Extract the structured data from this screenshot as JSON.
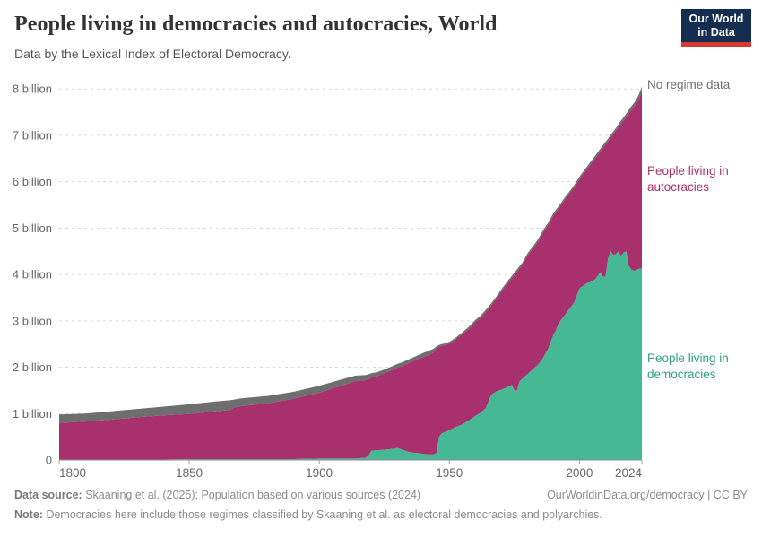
{
  "header": {
    "title": "People living in democracies and autocracies, World",
    "subtitle": "Data by the Lexical Index of Electoral Democracy."
  },
  "logo": {
    "line1": "Our World",
    "line2": "in Data",
    "bg_color": "#152d4f",
    "accent_color": "#d73a33"
  },
  "annotations": {
    "no_regime_data": "No regime data",
    "autocracies": "People living in autocracies",
    "democracies": "People living in democracies"
  },
  "footer": {
    "data_source_label": "Data source:",
    "data_source": "Skaaning et al. (2025); Population based on various sources (2024)",
    "url": "OurWorldinData.org/democracy",
    "separator": " | ",
    "license": "CC BY",
    "note_label": "Note:",
    "note": "Democracies here include those regimes classified by Skaaning et al. as electoral democracies and polyarchies."
  },
  "chart_data": {
    "type": "area",
    "stacked": true,
    "title": "People living in democracies and autocracies, World",
    "xlabel": "",
    "ylabel": "",
    "unit": "billion people",
    "xlim": [
      1800,
      2024
    ],
    "ylim": [
      0,
      8.12
    ],
    "grid": "horizontal-dashed",
    "legend_position": "right-annotations",
    "colors": {
      "democracies": "#46b894",
      "autocracies": "#a8306c",
      "no_regime_data": "#6e6e6e"
    },
    "yticks": [
      [
        0,
        "0"
      ],
      [
        1,
        "1 billion"
      ],
      [
        2,
        "2 billion"
      ],
      [
        3,
        "3 billion"
      ],
      [
        4,
        "4 billion"
      ],
      [
        5,
        "5 billion"
      ],
      [
        6,
        "6 billion"
      ],
      [
        7,
        "7 billion"
      ],
      [
        8,
        "8 billion"
      ]
    ],
    "xticks": [
      [
        1800,
        "1800",
        "start"
      ],
      [
        1850,
        "1850",
        "middle"
      ],
      [
        1900,
        "1900",
        "middle"
      ],
      [
        1950,
        "1950",
        "middle"
      ],
      [
        2000,
        "2000",
        "middle"
      ],
      [
        2024,
        "2024",
        "end"
      ]
    ],
    "x": [
      1800,
      1810,
      1820,
      1830,
      1840,
      1850,
      1860,
      1866,
      1867,
      1870,
      1880,
      1890,
      1900,
      1910,
      1914,
      1918,
      1919,
      1920,
      1922,
      1925,
      1928,
      1930,
      1932,
      1934,
      1936,
      1938,
      1940,
      1942,
      1944,
      1945,
      1946,
      1947,
      1948,
      1950,
      1952,
      1955,
      1958,
      1960,
      1962,
      1964,
      1966,
      1968,
      1970,
      1972,
      1974,
      1975,
      1976,
      1977,
      1978,
      1980,
      1982,
      1984,
      1986,
      1988,
      1990,
      1991,
      1992,
      1994,
      1996,
      1998,
      2000,
      2002,
      2004,
      2006,
      2008,
      2009,
      2010,
      2011,
      2012,
      2013,
      2014,
      2015,
      2016,
      2017,
      2018,
      2019,
      2020,
      2021,
      2022,
      2023,
      2024
    ],
    "series": [
      {
        "name": "People living in democracies",
        "color": "#46b894",
        "values": [
          0,
          0.01,
          0.01,
          0.01,
          0.01,
          0.02,
          0.02,
          0.02,
          0.02,
          0.02,
          0.02,
          0.02,
          0.03,
          0.03,
          0.03,
          0.05,
          0.1,
          0.2,
          0.21,
          0.22,
          0.24,
          0.26,
          0.22,
          0.18,
          0.16,
          0.15,
          0.13,
          0.12,
          0.12,
          0.15,
          0.5,
          0.57,
          0.6,
          0.64,
          0.7,
          0.77,
          0.87,
          0.95,
          1.02,
          1.12,
          1.4,
          1.48,
          1.52,
          1.56,
          1.62,
          1.5,
          1.5,
          1.7,
          1.75,
          1.85,
          1.95,
          2.05,
          2.2,
          2.4,
          2.7,
          2.8,
          2.95,
          3.1,
          3.25,
          3.4,
          3.7,
          3.78,
          3.85,
          3.89,
          4.05,
          3.96,
          3.95,
          4.35,
          4.5,
          4.42,
          4.44,
          4.5,
          4.4,
          4.47,
          4.5,
          4.18,
          4.1,
          4.08,
          4.1,
          4.13,
          4.12
        ]
      },
      {
        "name": "People living in autocracies",
        "color": "#a8306c",
        "values": [
          0.8,
          0.82,
          0.86,
          0.91,
          0.95,
          0.97,
          1.03,
          1.06,
          1.11,
          1.14,
          1.2,
          1.3,
          1.42,
          1.6,
          1.67,
          1.67,
          1.64,
          1.58,
          1.59,
          1.65,
          1.7,
          1.73,
          1.81,
          1.9,
          1.97,
          2.03,
          2.09,
          2.14,
          2.2,
          2.26,
          1.94,
          1.89,
          1.87,
          1.87,
          1.88,
          1.94,
          1.98,
          2.02,
          2.04,
          2.07,
          1.92,
          1.99,
          2.11,
          2.22,
          2.3,
          2.49,
          2.56,
          2.43,
          2.45,
          2.55,
          2.6,
          2.65,
          2.7,
          2.67,
          2.57,
          2.55,
          2.47,
          2.48,
          2.48,
          2.48,
          2.35,
          2.42,
          2.5,
          2.61,
          2.6,
          2.76,
          2.85,
          2.52,
          2.45,
          2.6,
          2.66,
          2.67,
          2.85,
          2.85,
          2.9,
          3.29,
          3.45,
          3.54,
          3.6,
          3.67,
          3.83
        ]
      },
      {
        "name": "No regime data",
        "color": "#6e6e6e",
        "values": [
          0.18,
          0.17,
          0.18,
          0.18,
          0.19,
          0.21,
          0.21,
          0.21,
          0.17,
          0.17,
          0.16,
          0.15,
          0.15,
          0.13,
          0.12,
          0.11,
          0.11,
          0.09,
          0.09,
          0.08,
          0.08,
          0.08,
          0.08,
          0.08,
          0.08,
          0.08,
          0.09,
          0.09,
          0.08,
          0.04,
          0.04,
          0.04,
          0.04,
          0.04,
          0.04,
          0.04,
          0.05,
          0.05,
          0.05,
          0.05,
          0.05,
          0.05,
          0.05,
          0.05,
          0.05,
          0.05,
          0.05,
          0.05,
          0.05,
          0.05,
          0.05,
          0.05,
          0.05,
          0.05,
          0.05,
          0.05,
          0.05,
          0.05,
          0.05,
          0.05,
          0.06,
          0.06,
          0.06,
          0.06,
          0.06,
          0.06,
          0.06,
          0.06,
          0.06,
          0.06,
          0.06,
          0.07,
          0.07,
          0.07,
          0.07,
          0.08,
          0.08,
          0.08,
          0.09,
          0.1,
          0.1
        ]
      }
    ]
  }
}
